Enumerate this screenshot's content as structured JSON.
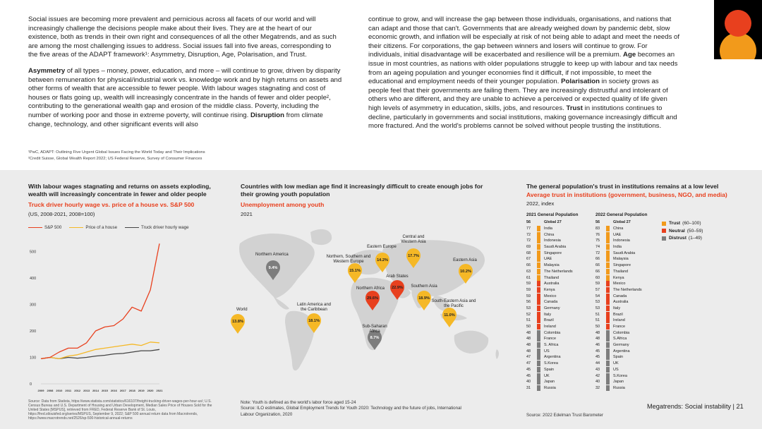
{
  "top": {
    "left_paragraphs": [
      [
        {
          "t": "Social issues are becoming more prevalent and pernicious across all facets of our world and will increasingly challenge the decisions people make about their lives. They are at the heart of our existence, both as trends in their own right and consequences of all the other Megatrends, and as such are among the most challenging issues to address. Social issues fall into five areas, corresponding to the five areas of the ADAPT framework¹: Asymmetry, Disruption, Age, Polarisation, and Trust.",
          "b": false
        }
      ],
      [
        {
          "t": "Asymmetry",
          "b": true
        },
        {
          "t": " of all types – money, power, education, and more – will continue to grow, driven by disparity between remuneration for physical/industrial work vs. knowledge work and by high returns on assets and other forms of wealth that are accessible to fewer people. With labour wages stagnating and cost of houses or flats going up, wealth will increasingly concentrate in the hands of fewer and older people², contributing to the generational wealth gap and erosion of the middle class. Poverty, including the number of working poor and those in extreme poverty, will continue rising. ",
          "b": false
        },
        {
          "t": "Disruption",
          "b": true
        },
        {
          "t": " from climate change, technology, and other significant events will also",
          "b": false
        }
      ]
    ],
    "right_paragraphs": [
      [
        {
          "t": "continue to grow, and will increase the gap between those individuals, organisations, and nations that can adapt and those that can't. Governments that are already weighed down by pandemic debt, slow economic growth, and inflation will be especially at risk of not being able to adapt and meet the needs of their citizens. For corporations, the gap between winners and losers will continue to grow. For individuals, initial disadvantage will be exacerbated and resilience will be a premium. ",
          "b": false
        },
        {
          "t": "Age",
          "b": true
        },
        {
          "t": " becomes an issue in most countries, as nations with older populations struggle to keep up with labour and tax needs from an ageing population and younger economies find it difficult, if not impossible, to meet the educational and employment needs of their younger population. ",
          "b": false
        },
        {
          "t": "Polarisation",
          "b": true
        },
        {
          "t": " in society grows as people feel that their governments are failing them. They are increasingly distrustful and intolerant of others who are different, and they are unable to achieve a perceived or expected quality of life given high levels of asymmetry in education, skills, jobs, and resources. ",
          "b": false
        },
        {
          "t": "Trust",
          "b": true
        },
        {
          "t": " in institutions continues to decline, particularly in governments and social institutions, making governance increasingly difficult and more fractured. And the world's problems cannot be solved without people trusting the institutions.",
          "b": false
        }
      ]
    ],
    "footnote1": "¹PwC, ADAPT: Outlining Five Urgent Global Issues Facing the World Today and Their Implications",
    "footnote2": "²Credit Suisse, Global Wealth Report 2022; US Federal Reserve, Survey of Consumer Finances"
  },
  "colors": {
    "red": "#e8401e",
    "orange": "#f29a1b",
    "gold": "#f5b826",
    "grey": "#7d7d7d",
    "dark": "#444444",
    "land": "#d2d2d2"
  },
  "panel1": {
    "heading": "With labour wages stagnating and returns on assets exploding, wealth will increasingly concentrate in fewer and older people",
    "subtitle": "Truck driver hourly wage vs. price of a house vs. S&P 500",
    "units": "(US, 2008-2021, 2008=100)",
    "source": "Source: Data from Statista, https://www.statista.com/statistics/616107/freight-trucking-driver-wages-per-hour-us/; U.S. Census Bureau and U.S. Department of Housing and Urban Development, Median Sales Price of Houses Sold for the United States [MSPUS], retrieved from FRED, Federal Reserve Bank of St. Louis, https://fred.stlouisfed.org/series/MSPUS, September 9, 2022; S&P 500 annual return data from Macrotrends, https://www.macrotrends.net/2526/sp-500-historical-annual-returns"
  },
  "panel2": {
    "heading": "Countries with low median age find it increasingly difficult to create enough jobs for their growing youth population",
    "subtitle": "Unemployment among youth",
    "units": "2021",
    "note": "Note: Youth is defined as the world's labor force aged 15-24",
    "source": "Source: ILO estimates, Global Employment Trends for Youth 2020: Technology and the future of jobs, International Labour Organization, 2020"
  },
  "panel3": {
    "heading": "The general population's trust in institutions remains at a low level",
    "subtitle": "Average trust in institutions (government, business, NGO, and media)",
    "units": "2022, index",
    "col2021_header": "2021 General Population",
    "col2022_header": "2022 General Population",
    "legend": [
      {
        "label": "Trust",
        "range": "(60–100)",
        "color": "#f29a1b"
      },
      {
        "label": "Neutral",
        "range": "(50–59)",
        "color": "#e8401e"
      },
      {
        "label": "Distrust",
        "range": "(1–49)",
        "color": "#7d7d7d"
      }
    ],
    "source": "Source: 2022 Edelman Trust Barometer"
  },
  "footer": "Megatrends: Social instability  |  21",
  "chart_data": [
    {
      "type": "line",
      "title": "Truck driver hourly wage vs. price of a house vs. S&P 500",
      "xlabel": "",
      "ylabel": "",
      "x": [
        2009,
        2008,
        2010,
        2011,
        2012,
        2013,
        2014,
        2015,
        2016,
        2017,
        2018,
        2019,
        2020,
        2021
      ],
      "ylim": [
        0,
        560
      ],
      "yticks": [
        0,
        100,
        200,
        300,
        400,
        500
      ],
      "legend_position": "top",
      "series": [
        {
          "name": "S&P 500",
          "color": "#e8401e",
          "values": [
            95,
            100,
            120,
            135,
            135,
            155,
            200,
            215,
            220,
            245,
            290,
            275,
            355,
            530
          ]
        },
        {
          "name": "Price of a house",
          "color": "#f5b826",
          "values": [
            95,
            100,
            95,
            105,
            110,
            120,
            130,
            135,
            140,
            145,
            150,
            145,
            158,
            155
          ]
        },
        {
          "name": "Truck driver hourly wage",
          "color": "#444444",
          "values": [
            95,
            100,
            95,
            100,
            97,
            100,
            105,
            108,
            113,
            115,
            120,
            125,
            125,
            130
          ]
        }
      ]
    },
    {
      "type": "map",
      "title": "Unemployment among youth",
      "regions": [
        {
          "name": "World",
          "value": "13.8%",
          "color": "#f5b826"
        },
        {
          "name": "Northern America",
          "value": "9.4%",
          "color": "#7d7d7d"
        },
        {
          "name": "Latin America and the Caribbean",
          "value": "18.1%",
          "color": "#f5b826"
        },
        {
          "name": "Northern, Southern and Western Europe",
          "value": "15.1%",
          "color": "#f5b826"
        },
        {
          "name": "Eastern Europe",
          "value": "14.2%",
          "color": "#f5b826"
        },
        {
          "name": "Central and Western Asia",
          "value": "17.7%",
          "color": "#f5b826"
        },
        {
          "name": "Arab States",
          "value": "22.9%",
          "color": "#e8401e"
        },
        {
          "name": "Northern Africa",
          "value": "29.6%",
          "color": "#e8401e"
        },
        {
          "name": "Southern Asia",
          "value": "18.9%",
          "color": "#f5b826"
        },
        {
          "name": "Eastern Asia",
          "value": "10.2%",
          "color": "#f5b826"
        },
        {
          "name": "South-Eastern Asia and the Pacific",
          "value": "11.0%",
          "color": "#f5b826"
        },
        {
          "name": "Sub-Saharan Africa",
          "value": "8.7%",
          "color": "#7d7d7d"
        }
      ]
    },
    {
      "type": "table",
      "title": "Average trust in institutions (government, business, NGO, and media)",
      "trust_2021": [
        {
          "v": "56",
          "c": "Global 27",
          "k": "g"
        },
        {
          "v": "77",
          "c": "India",
          "k": "t"
        },
        {
          "v": "72",
          "c": "China",
          "k": "t"
        },
        {
          "v": "72",
          "c": "Indonesia",
          "k": "t"
        },
        {
          "v": "69",
          "c": "Saudi Arabia",
          "k": "t"
        },
        {
          "v": "68",
          "c": "Singapore",
          "k": "t"
        },
        {
          "v": "67",
          "c": "UAE",
          "k": "t"
        },
        {
          "v": "66",
          "c": "Malaysia",
          "k": "t"
        },
        {
          "v": "63",
          "c": "The Netherlands",
          "k": "t"
        },
        {
          "v": "61",
          "c": "Thailand",
          "k": "t"
        },
        {
          "v": "59",
          "c": "Australia",
          "k": "n"
        },
        {
          "v": "59",
          "c": "Kenya",
          "k": "n"
        },
        {
          "v": "59",
          "c": "Mexico",
          "k": "n"
        },
        {
          "v": "56",
          "c": "Canada",
          "k": "n"
        },
        {
          "v": "53",
          "c": "Germany",
          "k": "n"
        },
        {
          "v": "52",
          "c": "Italy",
          "k": "n"
        },
        {
          "v": "51",
          "c": "Brazil",
          "k": "n"
        },
        {
          "v": "50",
          "c": "Ireland",
          "k": "n"
        },
        {
          "v": "48",
          "c": "Colombia",
          "k": "d"
        },
        {
          "v": "48",
          "c": "France",
          "k": "d"
        },
        {
          "v": "48",
          "c": "S. Africa",
          "k": "d"
        },
        {
          "v": "48",
          "c": "US",
          "k": "d"
        },
        {
          "v": "47",
          "c": "Argentina",
          "k": "d"
        },
        {
          "v": "47",
          "c": "S.Korea",
          "k": "d"
        },
        {
          "v": "45",
          "c": "Spain",
          "k": "d"
        },
        {
          "v": "45",
          "c": "UK",
          "k": "d"
        },
        {
          "v": "40",
          "c": "Japan",
          "k": "d"
        },
        {
          "v": "31",
          "c": "Russia",
          "k": "d"
        }
      ],
      "trust_2022": [
        {
          "v": "56",
          "c": "Global 27",
          "k": "g"
        },
        {
          "v": "83",
          "c": "China",
          "k": "t"
        },
        {
          "v": "76",
          "c": "UAE",
          "k": "t"
        },
        {
          "v": "75",
          "c": "Indonesia",
          "k": "t"
        },
        {
          "v": "74",
          "c": "India",
          "k": "t"
        },
        {
          "v": "72",
          "c": "Saudi Arabia",
          "k": "t"
        },
        {
          "v": "66",
          "c": "Malaysia",
          "k": "t"
        },
        {
          "v": "66",
          "c": "Singapore",
          "k": "t"
        },
        {
          "v": "66",
          "c": "Thailand",
          "k": "t"
        },
        {
          "v": "60",
          "c": "Kenya",
          "k": "t"
        },
        {
          "v": "59",
          "c": "Mexico",
          "k": "n"
        },
        {
          "v": "57",
          "c": "The Netherlands",
          "k": "n"
        },
        {
          "v": "54",
          "c": "Canada",
          "k": "n"
        },
        {
          "v": "53",
          "c": "Australia",
          "k": "n"
        },
        {
          "v": "53",
          "c": "Italy",
          "k": "n"
        },
        {
          "v": "51",
          "c": "Brazil",
          "k": "n"
        },
        {
          "v": "51",
          "c": "Ireland",
          "k": "n"
        },
        {
          "v": "50",
          "c": "France",
          "k": "n"
        },
        {
          "v": "48",
          "c": "Colombia",
          "k": "d"
        },
        {
          "v": "48",
          "c": "S.Africa",
          "k": "d"
        },
        {
          "v": "46",
          "c": "Germany",
          "k": "d"
        },
        {
          "v": "45",
          "c": "Argentina",
          "k": "d"
        },
        {
          "v": "45",
          "c": "Spain",
          "k": "d"
        },
        {
          "v": "44",
          "c": "UK",
          "k": "d"
        },
        {
          "v": "43",
          "c": "US",
          "k": "d"
        },
        {
          "v": "42",
          "c": "S.Korea",
          "k": "d"
        },
        {
          "v": "40",
          "c": "Japan",
          "k": "d"
        },
        {
          "v": "32",
          "c": "Russia",
          "k": "d"
        }
      ]
    }
  ]
}
